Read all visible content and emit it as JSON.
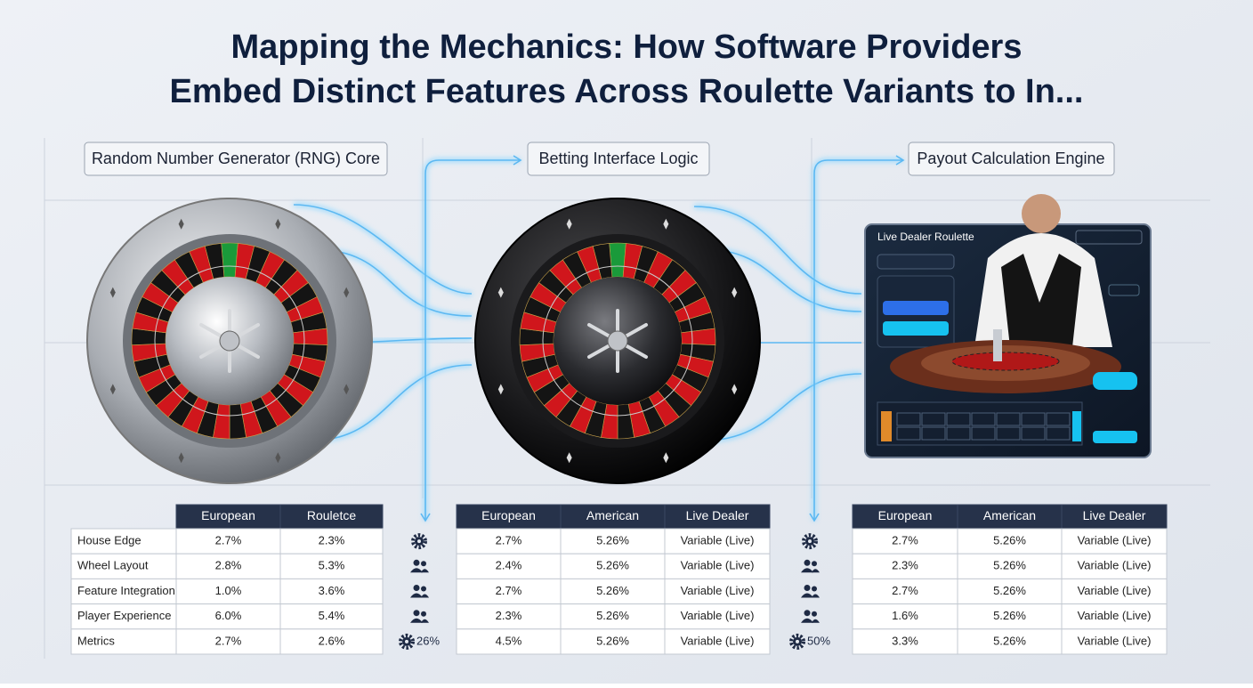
{
  "title_lines": [
    "Mapping the Mechanics: How Software Providers",
    "Embed Distinct Features Across Roulette Variants to In..."
  ],
  "stages": [
    "Random Number Generator (RNG) Core",
    "Betting Interface Logic",
    "Payout Calculation Engine"
  ],
  "live_panel": {
    "title": "Live Dealer Roulette"
  },
  "row_labels": [
    "House Edge",
    "Wheel Layout",
    "Feature Integration",
    "Player Experience",
    "Metrics"
  ],
  "tables": [
    {
      "headers": [
        "European",
        "Rouletce"
      ],
      "rows": [
        [
          "2.7%",
          "2.3%"
        ],
        [
          "2.8%",
          "5.3%"
        ],
        [
          "1.0%",
          "3.6%"
        ],
        [
          "6.0%",
          "5.4%"
        ],
        [
          "2.7%",
          "2.6%"
        ]
      ]
    },
    {
      "headers": [
        "European",
        "American",
        "Live Dealer"
      ],
      "rows": [
        [
          "2.7%",
          "5.26%",
          "Variable (Live)"
        ],
        [
          "2.4%",
          "5.26%",
          "Variable (Live)"
        ],
        [
          "2.7%",
          "5.26%",
          "Variable (Live)"
        ],
        [
          "2.3%",
          "5.26%",
          "Variable (Live)"
        ],
        [
          "4.5%",
          "5.26%",
          "Variable (Live)"
        ]
      ]
    },
    {
      "headers": [
        "European",
        "American",
        "Live Dealer"
      ],
      "rows": [
        [
          "2.7%",
          "5.26%",
          "Variable (Live)"
        ],
        [
          "2.3%",
          "5.26%",
          "Variable (Live)"
        ],
        [
          "2.7%",
          "5.26%",
          "Variable (Live)"
        ],
        [
          "1.6%",
          "5.26%",
          "Variable (Live)"
        ],
        [
          "3.3%",
          "5.26%",
          "Variable (Live)"
        ]
      ]
    }
  ],
  "icon_labels": [
    "26%",
    "50%"
  ]
}
